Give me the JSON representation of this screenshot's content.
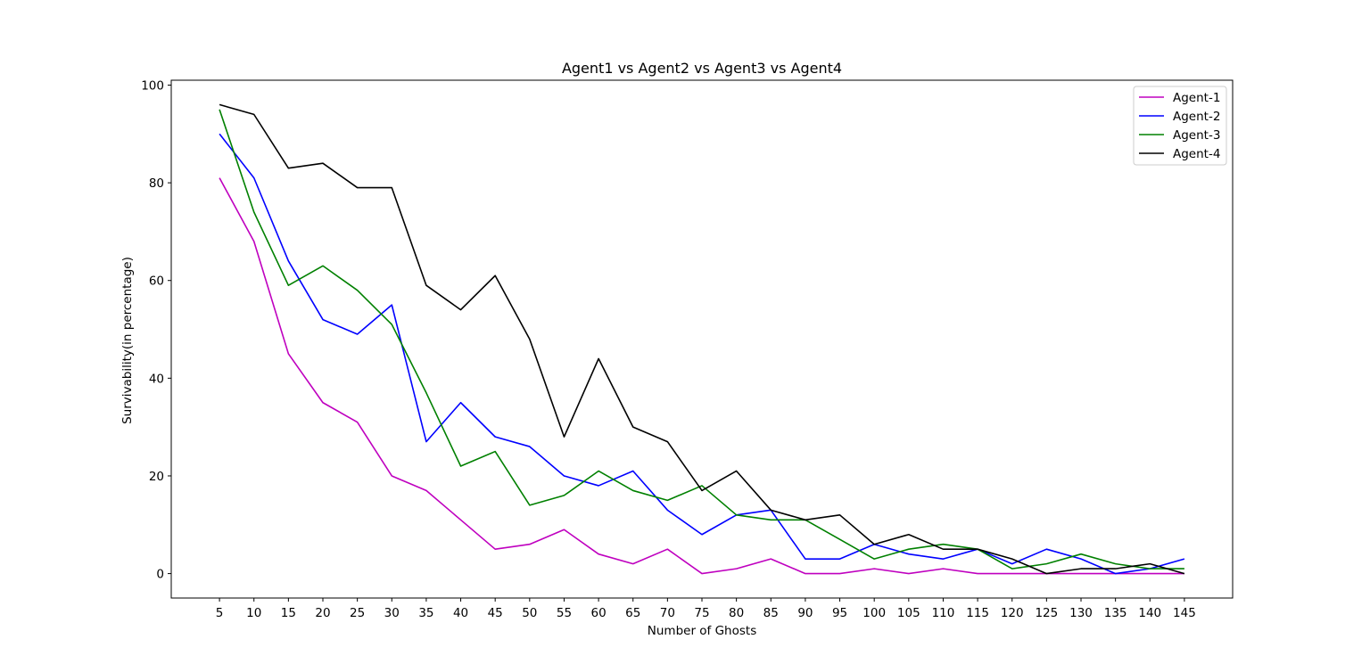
{
  "chart_data": {
    "type": "line",
    "title": "Agent1 vs Agent2 vs Agent3 vs Agent4",
    "xlabel": "Number of Ghosts",
    "ylabel": "Survivability(in percentage)",
    "x": [
      5,
      10,
      15,
      20,
      25,
      30,
      35,
      40,
      45,
      50,
      55,
      60,
      65,
      70,
      75,
      80,
      85,
      90,
      95,
      100,
      105,
      110,
      115,
      120,
      125,
      130,
      135,
      140,
      145
    ],
    "xlim": [
      -2,
      152
    ],
    "ylim": [
      -5,
      101
    ],
    "yticks": [
      0,
      20,
      40,
      60,
      80,
      100
    ],
    "grid": false,
    "legend_position": "top-right",
    "series": [
      {
        "name": "Agent-1",
        "color": "#bf00bf",
        "values": [
          81,
          68,
          45,
          35,
          31,
          20,
          17,
          11,
          5,
          6,
          9,
          4,
          2,
          5,
          0,
          1,
          3,
          0,
          0,
          1,
          0,
          1,
          0,
          0,
          0,
          0,
          0,
          0,
          0
        ]
      },
      {
        "name": "Agent-2",
        "color": "#0000ff",
        "values": [
          90,
          81,
          64,
          52,
          49,
          55,
          27,
          35,
          28,
          26,
          20,
          18,
          21,
          13,
          8,
          12,
          13,
          3,
          3,
          6,
          4,
          3,
          5,
          2,
          5,
          3,
          0,
          1,
          3
        ]
      },
      {
        "name": "Agent-3",
        "color": "#008000",
        "values": [
          95,
          74,
          59,
          63,
          58,
          51,
          37,
          22,
          25,
          14,
          16,
          21,
          17,
          15,
          18,
          12,
          11,
          11,
          7,
          3,
          5,
          6,
          5,
          1,
          2,
          4,
          2,
          1,
          1
        ]
      },
      {
        "name": "Agent-4",
        "color": "#000000",
        "values": [
          96,
          94,
          83,
          84,
          79,
          79,
          59,
          54,
          61,
          48,
          28,
          44,
          30,
          27,
          17,
          21,
          13,
          11,
          12,
          6,
          8,
          5,
          5,
          3,
          0,
          1,
          1,
          2,
          0
        ]
      }
    ]
  }
}
